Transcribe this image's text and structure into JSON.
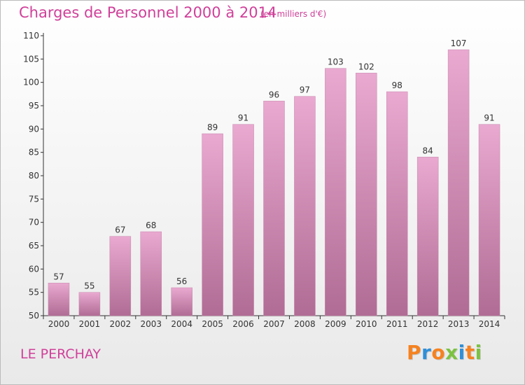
{
  "header": {
    "title": "Charges de Personnel 2000 à 2014",
    "subtitle": "(en milliers d'€)"
  },
  "footer": {
    "place": "LE PERCHAY",
    "logo": {
      "letters": [
        "P",
        "r",
        "o",
        "x",
        "i",
        "t",
        "i"
      ],
      "colors": [
        "#f58220",
        "#2e8fd8",
        "#f58220",
        "#7cc242",
        "#2e8fd8",
        "#f58220",
        "#7cc242"
      ]
    }
  },
  "colors": {
    "bar_top": "#e9a9d0",
    "bar_bottom": "#b06c94",
    "title": "#d0409a",
    "grid": "#cccccc"
  },
  "chart_data": {
    "type": "bar",
    "title": "Charges de Personnel 2000 à 2014",
    "subtitle": "(en milliers d'€)",
    "categories": [
      "2000",
      "2001",
      "2002",
      "2003",
      "2004",
      "2005",
      "2006",
      "2007",
      "2008",
      "2009",
      "2010",
      "2011",
      "2012",
      "2013",
      "2014"
    ],
    "values": [
      57,
      55,
      67,
      68,
      56,
      89,
      91,
      96,
      97,
      103,
      102,
      98,
      84,
      107,
      91
    ],
    "ylim": [
      50,
      110
    ],
    "yticks": [
      50,
      55,
      60,
      65,
      70,
      75,
      80,
      85,
      90,
      95,
      100,
      105,
      110
    ],
    "data_labels": true,
    "grid": false
  }
}
